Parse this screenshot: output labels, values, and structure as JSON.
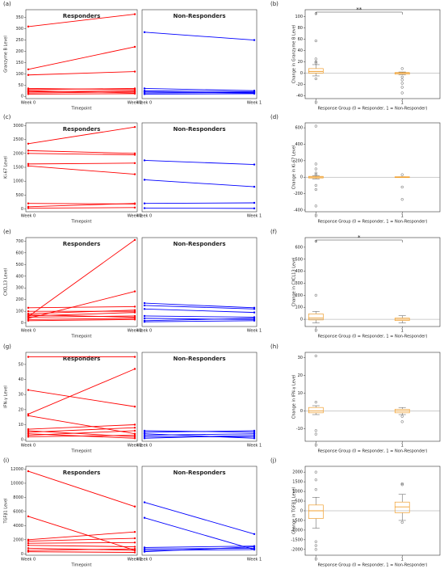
{
  "chart_data": [
    {
      "type": "line",
      "label": "(a)",
      "ylabel": "Granzyme B Level",
      "xlabel": "Timepoint",
      "categories": [
        "Week 0",
        "Week 1"
      ],
      "ylim": [
        -10,
        385
      ],
      "yticks": [
        0,
        50,
        100,
        150,
        200,
        250,
        300,
        350
      ],
      "panels": [
        {
          "title": "Responders",
          "color": "#ff0000",
          "series": [
            {
              "values": [
                310,
                365
              ]
            },
            {
              "values": [
                120,
                220
              ]
            },
            {
              "values": [
                95,
                110
              ]
            },
            {
              "values": [
                35,
                30
              ]
            },
            {
              "values": [
                30,
                35
              ]
            },
            {
              "values": [
                25,
                15
              ]
            },
            {
              "values": [
                20,
                25
              ]
            },
            {
              "values": [
                15,
                20
              ]
            },
            {
              "values": [
                10,
                12
              ]
            }
          ]
        },
        {
          "title": "Non-Responders",
          "color": "#0000ff",
          "series": [
            {
              "values": [
                285,
                250
              ]
            },
            {
              "values": [
                35,
                25
              ]
            },
            {
              "values": [
                25,
                20
              ]
            },
            {
              "values": [
                20,
                15
              ]
            },
            {
              "values": [
                15,
                18
              ]
            },
            {
              "values": [
                10,
                12
              ]
            }
          ]
        }
      ]
    },
    {
      "type": "box",
      "label": "(b)",
      "ylabel": "Change in Granzyme B Level",
      "xlabel": "Response Group (0 = Responder, 1 = Non-Responder)",
      "categories": [
        "0",
        "1"
      ],
      "ylim": [
        -45,
        112
      ],
      "yticks": [
        -40,
        -20,
        0,
        20,
        40,
        60,
        80,
        100
      ],
      "significance": "**",
      "color": "#f0a030",
      "boxes": [
        {
          "whislo": -5,
          "q1": 0,
          "med": 3,
          "q3": 8,
          "whishi": 15,
          "fliers": [
            105,
            57,
            25,
            20,
            18,
            -10
          ]
        },
        {
          "whislo": -3,
          "q1": -2,
          "med": 0,
          "q3": 1,
          "whishi": 2,
          "fliers": [
            8,
            -7,
            -12,
            -18,
            -25,
            -35
          ]
        }
      ]
    },
    {
      "type": "line",
      "label": "(c)",
      "ylabel": "Ki-67 Level",
      "xlabel": "Timepoint",
      "categories": [
        "Week 0",
        "Week 1"
      ],
      "ylim": [
        -100,
        3100
      ],
      "yticks": [
        0,
        500,
        1000,
        1500,
        2000,
        2500,
        3000
      ],
      "panels": [
        {
          "title": "Responders",
          "color": "#ff0000",
          "series": [
            {
              "values": [
                2350,
                2950
              ]
            },
            {
              "values": [
                2100,
                2000
              ]
            },
            {
              "values": [
                2000,
                1950
              ]
            },
            {
              "values": [
                1620,
                1650
              ]
            },
            {
              "values": [
                1550,
                1250
              ]
            },
            {
              "values": [
                200,
                180
              ]
            },
            {
              "values": [
                80,
                200
              ]
            },
            {
              "values": [
                30,
                50
              ]
            }
          ]
        },
        {
          "title": "Non-Responders",
          "color": "#0000ff",
          "series": [
            {
              "values": [
                1750,
                1600
              ]
            },
            {
              "values": [
                1050,
                800
              ]
            },
            {
              "values": [
                200,
                220
              ]
            },
            {
              "values": [
                30,
                20
              ]
            }
          ]
        }
      ]
    },
    {
      "type": "box",
      "label": "(d)",
      "ylabel": "Change in Ki-67 Level",
      "xlabel": "Response Group (0 = Responder, 1 = Non-Responder)",
      "categories": [
        "0",
        "1"
      ],
      "ylim": [
        -420,
        660
      ],
      "yticks": [
        -400,
        -200,
        0,
        200,
        400,
        600
      ],
      "color": "#f0a030",
      "boxes": [
        {
          "whislo": -20,
          "q1": -10,
          "med": 0,
          "q3": 10,
          "whishi": 20,
          "fliers": [
            620,
            160,
            100,
            50,
            30,
            -100,
            -150,
            -350
          ]
        },
        {
          "whislo": -5,
          "q1": -5,
          "med": 0,
          "q3": 5,
          "whishi": 5,
          "fliers": [
            30,
            -120,
            -270
          ]
        }
      ]
    },
    {
      "type": "line",
      "label": "(e)",
      "ylabel": "CXCL13 Level",
      "xlabel": "Timepoint",
      "categories": [
        "Week 0",
        "Week 1"
      ],
      "ylim": [
        -30,
        730
      ],
      "yticks": [
        0,
        100,
        200,
        300,
        400,
        500,
        600,
        700
      ],
      "panels": [
        {
          "title": "Responders",
          "color": "#ff0000",
          "series": [
            {
              "values": [
                55,
                710
              ]
            },
            {
              "values": [
                40,
                270
              ]
            },
            {
              "values": [
                130,
                140
              ]
            },
            {
              "values": [
                100,
                100
              ]
            },
            {
              "values": [
                80,
                110
              ]
            },
            {
              "values": [
                60,
                90
              ]
            },
            {
              "values": [
                70,
                50
              ]
            },
            {
              "values": [
                50,
                60
              ]
            },
            {
              "values": [
                30,
                40
              ]
            },
            {
              "values": [
                20,
                30
              ]
            }
          ]
        },
        {
          "title": "Non-Responders",
          "color": "#0000ff",
          "series": [
            {
              "values": [
                170,
                130
              ]
            },
            {
              "values": [
                150,
                120
              ]
            },
            {
              "values": [
                120,
                90
              ]
            },
            {
              "values": [
                60,
                50
              ]
            },
            {
              "values": [
                40,
                30
              ]
            },
            {
              "values": [
                20,
                40
              ]
            },
            {
              "values": [
                10,
                20
              ]
            }
          ]
        }
      ]
    },
    {
      "type": "box",
      "label": "(f)",
      "ylabel": "Change in CXCL13 Level",
      "xlabel": "Response Group (0 = Responder, 1 = Non-Responder)",
      "categories": [
        "0",
        "1"
      ],
      "ylim": [
        -60,
        680
      ],
      "yticks": [
        0,
        100,
        200,
        300,
        400,
        500,
        600
      ],
      "significance": "*",
      "color": "#f0a030",
      "boxes": [
        {
          "whislo": -30,
          "q1": -5,
          "med": 10,
          "q3": 45,
          "whishi": 65,
          "fliers": [
            650,
            200
          ]
        },
        {
          "whislo": -30,
          "q1": -10,
          "med": 0,
          "q3": 10,
          "whishi": 30,
          "fliers": []
        }
      ]
    },
    {
      "type": "line",
      "label": "(g)",
      "ylabel": "IFN-γ Level",
      "xlabel": "Timepoint",
      "categories": [
        "Week 0",
        "Week 1"
      ],
      "ylim": [
        -1,
        58
      ],
      "yticks": [
        0,
        10,
        20,
        30,
        40,
        50
      ],
      "panels": [
        {
          "title": "Responders",
          "color": "#ff0000",
          "series": [
            {
              "values": [
                55,
                55
              ]
            },
            {
              "values": [
                33,
                22
              ]
            },
            {
              "values": [
                17,
                47
              ]
            },
            {
              "values": [
                16,
                4
              ]
            },
            {
              "values": [
                7,
                10
              ]
            },
            {
              "values": [
                5,
                8
              ]
            },
            {
              "values": [
                3,
                6
              ]
            },
            {
              "values": [
                2,
                3
              ]
            },
            {
              "values": [
                4,
                1
              ]
            },
            {
              "values": [
                6,
                2
              ]
            }
          ]
        },
        {
          "title": "Non-Responders",
          "color": "#0000ff",
          "series": [
            {
              "values": [
                6,
                5
              ]
            },
            {
              "values": [
                5,
                6
              ]
            },
            {
              "values": [
                3,
                4
              ]
            },
            {
              "values": [
                2,
                2
              ]
            },
            {
              "values": [
                1,
                3
              ]
            },
            {
              "values": [
                4,
                1
              ]
            }
          ]
        }
      ]
    },
    {
      "type": "box",
      "label": "(h)",
      "ylabel": "Change in IFN-γ Level",
      "xlabel": "Response Group (0 = Responder, 1 = Non-Responder)",
      "categories": [
        "0",
        "1"
      ],
      "ylim": [
        -17,
        33
      ],
      "yticks": [
        -10,
        0,
        10,
        20,
        30
      ],
      "color": "#f0a030",
      "boxes": [
        {
          "whislo": -2,
          "q1": -1,
          "med": 0,
          "q3": 2,
          "whishi": 3,
          "fliers": [
            31,
            5,
            -11,
            -13
          ]
        },
        {
          "whislo": -2,
          "q1": -1,
          "med": 0,
          "q3": 1,
          "whishi": 2,
          "fliers": [
            -3,
            -6
          ]
        }
      ]
    },
    {
      "type": "line",
      "label": "(i)",
      "ylabel": "TGFβ1 Level",
      "xlabel": "Timepoint",
      "categories": [
        "Week 0",
        "Week 1"
      ],
      "ylim": [
        -200,
        12400
      ],
      "yticks": [
        0,
        2000,
        4000,
        6000,
        8000,
        10000,
        12000
      ],
      "panels": [
        {
          "title": "Responders",
          "color": "#ff0000",
          "series": [
            {
              "values": [
                11700,
                6700
              ]
            },
            {
              "values": [
                5300,
                500
              ]
            },
            {
              "values": [
                2000,
                3100
              ]
            },
            {
              "values": [
                1800,
                2200
              ]
            },
            {
              "values": [
                1500,
                1600
              ]
            },
            {
              "values": [
                1200,
                1000
              ]
            },
            {
              "values": [
                800,
                500
              ]
            },
            {
              "values": [
                500,
                700
              ]
            },
            {
              "values": [
                300,
                200
              ]
            }
          ]
        },
        {
          "title": "Non-Responders",
          "color": "#0000ff",
          "series": [
            {
              "values": [
                7300,
                2800
              ]
            },
            {
              "values": [
                5100,
                600
              ]
            },
            {
              "values": [
                900,
                1100
              ]
            },
            {
              "values": [
                700,
                800
              ]
            },
            {
              "values": [
                500,
                600
              ]
            },
            {
              "values": [
                300,
                1000
              ]
            }
          ]
        }
      ]
    },
    {
      "type": "box",
      "label": "(j)",
      "ylabel": "Change in TGFβ1 Level",
      "xlabel": "Response Group (0 = Responder, 1 = Non-Responder)",
      "categories": [
        "0",
        "1"
      ],
      "ylim": [
        -2300,
        2300
      ],
      "yticks": [
        -2000,
        -1500,
        -1000,
        -500,
        0,
        500,
        1000,
        1500,
        2000
      ],
      "color": "#f0a030",
      "boxes": [
        {
          "whislo": -900,
          "q1": -400,
          "med": 0,
          "q3": 300,
          "whishi": 700,
          "fliers": [
            2000,
            1600,
            1100,
            -1600,
            -1800,
            -2000
          ]
        },
        {
          "whislo": -500,
          "q1": -100,
          "med": 200,
          "q3": 450,
          "whishi": 850,
          "fliers": [
            1400,
            1350,
            -600
          ]
        }
      ]
    }
  ]
}
